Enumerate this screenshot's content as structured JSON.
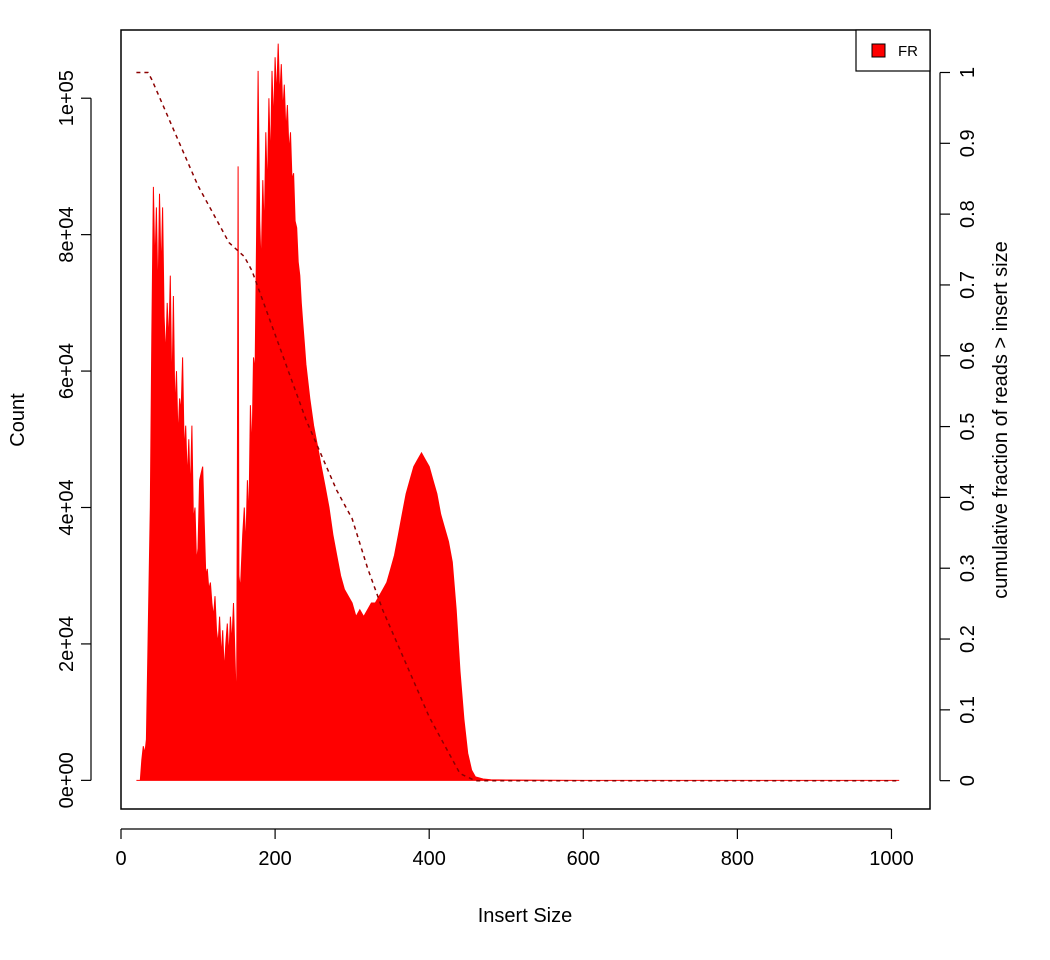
{
  "chart_data": {
    "type": "area",
    "xlabel": "Insert Size",
    "ylabel": "Count",
    "y2label": "cumulative fraction of reads > insert size",
    "xlim": [
      0,
      1050
    ],
    "ylim": [
      -4200,
      110000
    ],
    "y2lim": [
      -0.04,
      1.06
    ],
    "x_ticks": [
      "0",
      "200",
      "400",
      "600",
      "800",
      "1000"
    ],
    "y_ticks": [
      "0e+00",
      "2e+04",
      "4e+04",
      "6e+04",
      "8e+04",
      "1e+05"
    ],
    "y2_ticks": [
      "0",
      "0.1",
      "0.2",
      "0.3",
      "0.4",
      "0.5",
      "0.6",
      "0.7",
      "0.8",
      "0.9",
      "1"
    ],
    "legend": {
      "position": "top-right",
      "entries": [
        {
          "label": "FR",
          "color": "#ff0000"
        }
      ]
    },
    "colors": {
      "histogram": "#ff0000",
      "cumulative": "#8b0000"
    },
    "grid": false,
    "series": [
      {
        "name": "FR",
        "kind": "histogram",
        "points": [
          [
            20,
            0
          ],
          [
            25,
            0
          ],
          [
            27,
            3000
          ],
          [
            29,
            5000
          ],
          [
            31,
            4000
          ],
          [
            33,
            6000
          ],
          [
            35,
            20000
          ],
          [
            38,
            40000
          ],
          [
            40,
            65000
          ],
          [
            42,
            87000
          ],
          [
            44,
            75000
          ],
          [
            46,
            84000
          ],
          [
            48,
            70000
          ],
          [
            50,
            86000
          ],
          [
            52,
            74000
          ],
          [
            54,
            84000
          ],
          [
            56,
            68000
          ],
          [
            58,
            62000
          ],
          [
            60,
            70000
          ],
          [
            62,
            64000
          ],
          [
            64,
            74000
          ],
          [
            66,
            56000
          ],
          [
            68,
            71000
          ],
          [
            70,
            54000
          ],
          [
            72,
            60000
          ],
          [
            74,
            50000
          ],
          [
            76,
            56000
          ],
          [
            78,
            54000
          ],
          [
            80,
            62000
          ],
          [
            82,
            48000
          ],
          [
            84,
            52000
          ],
          [
            86,
            44000
          ],
          [
            88,
            50000
          ],
          [
            90,
            42000
          ],
          [
            92,
            52000
          ],
          [
            94,
            38000
          ],
          [
            96,
            40000
          ],
          [
            98,
            32000
          ],
          [
            100,
            34000
          ],
          [
            102,
            44000
          ],
          [
            104,
            45000
          ],
          [
            106,
            46000
          ],
          [
            108,
            38000
          ],
          [
            110,
            30000
          ],
          [
            112,
            31000
          ],
          [
            114,
            28000
          ],
          [
            116,
            29000
          ],
          [
            118,
            26000
          ],
          [
            120,
            24000
          ],
          [
            122,
            27000
          ],
          [
            124,
            22000
          ],
          [
            126,
            20000
          ],
          [
            128,
            24000
          ],
          [
            130,
            18000
          ],
          [
            132,
            22000
          ],
          [
            134,
            16000
          ],
          [
            136,
            20000
          ],
          [
            138,
            23000
          ],
          [
            140,
            18000
          ],
          [
            142,
            24000
          ],
          [
            144,
            20000
          ],
          [
            146,
            26000
          ],
          [
            148,
            18000
          ],
          [
            150,
            10000
          ],
          [
            151,
            40000
          ],
          [
            152,
            90000
          ],
          [
            153,
            30000
          ],
          [
            155,
            28000
          ],
          [
            158,
            36000
          ],
          [
            160,
            40000
          ],
          [
            162,
            34000
          ],
          [
            164,
            44000
          ],
          [
            166,
            38000
          ],
          [
            168,
            55000
          ],
          [
            170,
            48000
          ],
          [
            172,
            62000
          ],
          [
            174,
            60000
          ],
          [
            176,
            80000
          ],
          [
            178,
            104000
          ],
          [
            180,
            82000
          ],
          [
            182,
            75000
          ],
          [
            184,
            88000
          ],
          [
            186,
            80000
          ],
          [
            188,
            95000
          ],
          [
            190,
            86000
          ],
          [
            192,
            100000
          ],
          [
            194,
            90000
          ],
          [
            196,
            104000
          ],
          [
            198,
            96000
          ],
          [
            200,
            106000
          ],
          [
            202,
            100000
          ],
          [
            204,
            108000
          ],
          [
            206,
            100000
          ],
          [
            208,
            105000
          ],
          [
            210,
            98000
          ],
          [
            212,
            102000
          ],
          [
            214,
            95000
          ],
          [
            216,
            99000
          ],
          [
            218,
            92000
          ],
          [
            220,
            95000
          ],
          [
            222,
            88000
          ],
          [
            224,
            89000
          ],
          [
            226,
            82000
          ],
          [
            228,
            81000
          ],
          [
            230,
            76000
          ],
          [
            232,
            74000
          ],
          [
            234,
            70000
          ],
          [
            236,
            67000
          ],
          [
            238,
            64000
          ],
          [
            240,
            61000
          ],
          [
            245,
            56000
          ],
          [
            250,
            52000
          ],
          [
            255,
            49000
          ],
          [
            260,
            46000
          ],
          [
            265,
            43000
          ],
          [
            270,
            40000
          ],
          [
            275,
            36000
          ],
          [
            280,
            33000
          ],
          [
            285,
            30000
          ],
          [
            290,
            28000
          ],
          [
            295,
            27000
          ],
          [
            300,
            26000
          ],
          [
            305,
            24000
          ],
          [
            310,
            25000
          ],
          [
            315,
            24000
          ],
          [
            320,
            25000
          ],
          [
            325,
            26000
          ],
          [
            330,
            26000
          ],
          [
            335,
            27000
          ],
          [
            340,
            28000
          ],
          [
            345,
            29000
          ],
          [
            350,
            31000
          ],
          [
            355,
            33000
          ],
          [
            360,
            36000
          ],
          [
            365,
            39000
          ],
          [
            370,
            42000
          ],
          [
            375,
            44000
          ],
          [
            380,
            46000
          ],
          [
            385,
            47000
          ],
          [
            390,
            48000
          ],
          [
            395,
            47000
          ],
          [
            400,
            46000
          ],
          [
            405,
            44000
          ],
          [
            410,
            42000
          ],
          [
            415,
            39000
          ],
          [
            420,
            37000
          ],
          [
            425,
            35000
          ],
          [
            430,
            32000
          ],
          [
            435,
            25000
          ],
          [
            440,
            16000
          ],
          [
            445,
            9000
          ],
          [
            450,
            4000
          ],
          [
            455,
            1500
          ],
          [
            460,
            500
          ],
          [
            470,
            200
          ],
          [
            480,
            100
          ],
          [
            500,
            50
          ],
          [
            600,
            0
          ],
          [
            800,
            0
          ],
          [
            1000,
            0
          ],
          [
            1010,
            0
          ]
        ]
      },
      {
        "name": "",
        "kind": "cumulative",
        "points": [
          [
            20,
            1.0
          ],
          [
            35,
            1.0
          ],
          [
            40,
            0.99
          ],
          [
            60,
            0.94
          ],
          [
            80,
            0.89
          ],
          [
            100,
            0.84
          ],
          [
            120,
            0.8
          ],
          [
            140,
            0.76
          ],
          [
            160,
            0.74
          ],
          [
            170,
            0.72
          ],
          [
            190,
            0.66
          ],
          [
            200,
            0.63
          ],
          [
            220,
            0.57
          ],
          [
            240,
            0.51
          ],
          [
            260,
            0.46
          ],
          [
            280,
            0.41
          ],
          [
            300,
            0.37
          ],
          [
            320,
            0.3
          ],
          [
            340,
            0.24
          ],
          [
            360,
            0.19
          ],
          [
            380,
            0.14
          ],
          [
            400,
            0.09
          ],
          [
            420,
            0.05
          ],
          [
            440,
            0.01
          ],
          [
            460,
            0.0
          ],
          [
            500,
            0.0
          ],
          [
            700,
            0.0
          ],
          [
            900,
            0.0
          ],
          [
            1010,
            0.0
          ]
        ]
      }
    ]
  }
}
